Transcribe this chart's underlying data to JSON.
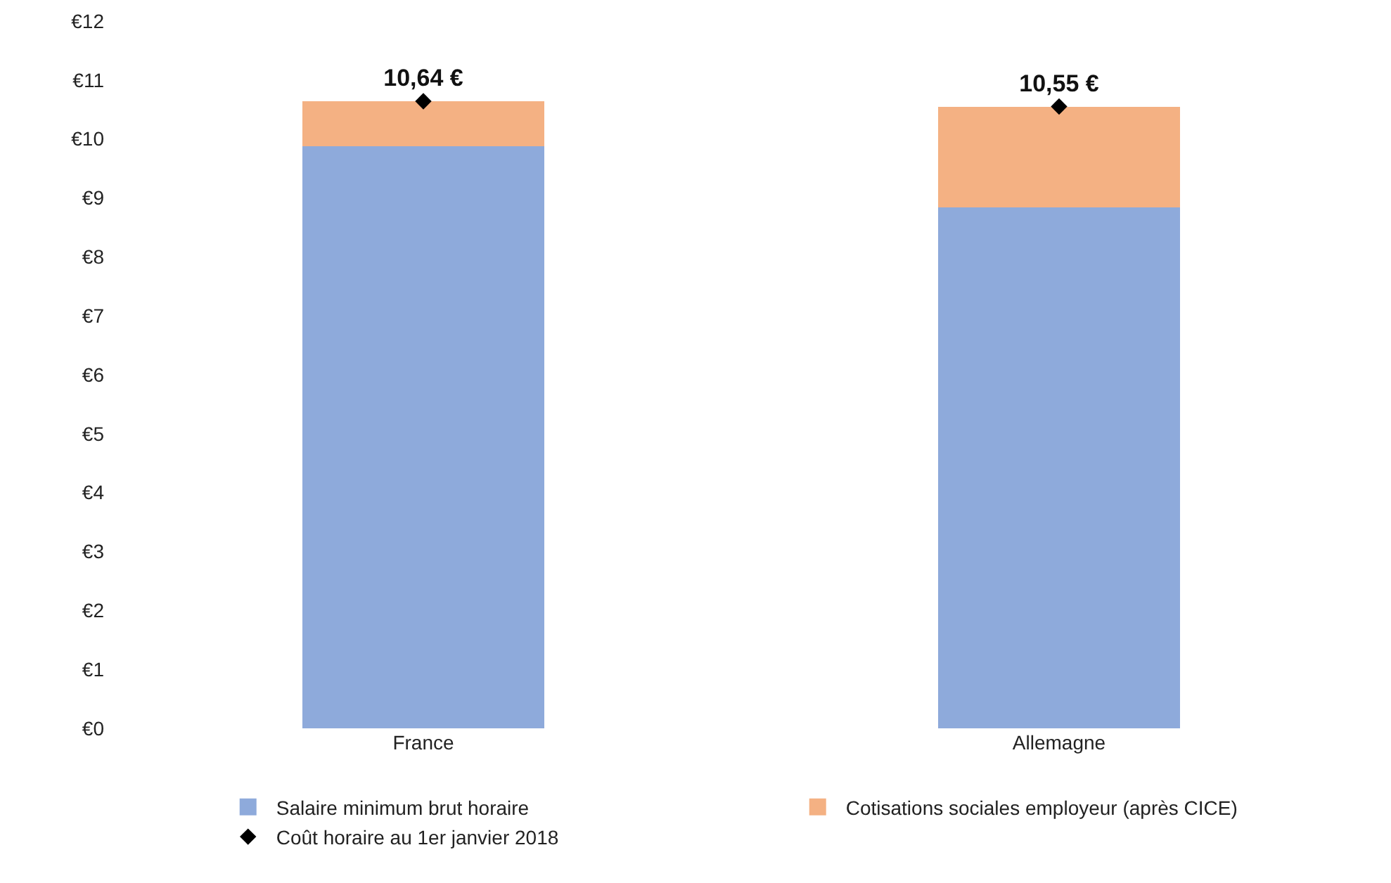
{
  "chart_data": {
    "type": "bar",
    "stacked": true,
    "categories": [
      "France",
      "Allemagne"
    ],
    "series": [
      {
        "name": "Salaire minimum brut horaire",
        "color": "#8eaadb",
        "values": [
          9.88,
          8.84
        ]
      },
      {
        "name": "Cotisations sociales employeur (après CICE)",
        "color": "#f4b183",
        "values": [
          0.76,
          1.71
        ]
      },
      {
        "name": "Coût horaire au 1er janvier 2018",
        "type": "scatter",
        "marker": "diamond",
        "color": "#000000",
        "values": [
          10.64,
          10.55
        ],
        "value_labels": [
          "10,64 €",
          "10,55 €"
        ]
      }
    ],
    "ylim": [
      0,
      12
    ],
    "yticks": [
      {
        "value": 0,
        "label": "€0"
      },
      {
        "value": 1,
        "label": "€1"
      },
      {
        "value": 2,
        "label": "€2"
      },
      {
        "value": 3,
        "label": "€3"
      },
      {
        "value": 4,
        "label": "€4"
      },
      {
        "value": 5,
        "label": "€5"
      },
      {
        "value": 6,
        "label": "€6"
      },
      {
        "value": 7,
        "label": "€7"
      },
      {
        "value": 8,
        "label": "€8"
      },
      {
        "value": 9,
        "label": "€9"
      },
      {
        "value": 10,
        "label": "€10"
      },
      {
        "value": 11,
        "label": "€11"
      },
      {
        "value": 12,
        "label": "€12"
      }
    ],
    "grid": false,
    "legend": "bottom"
  }
}
